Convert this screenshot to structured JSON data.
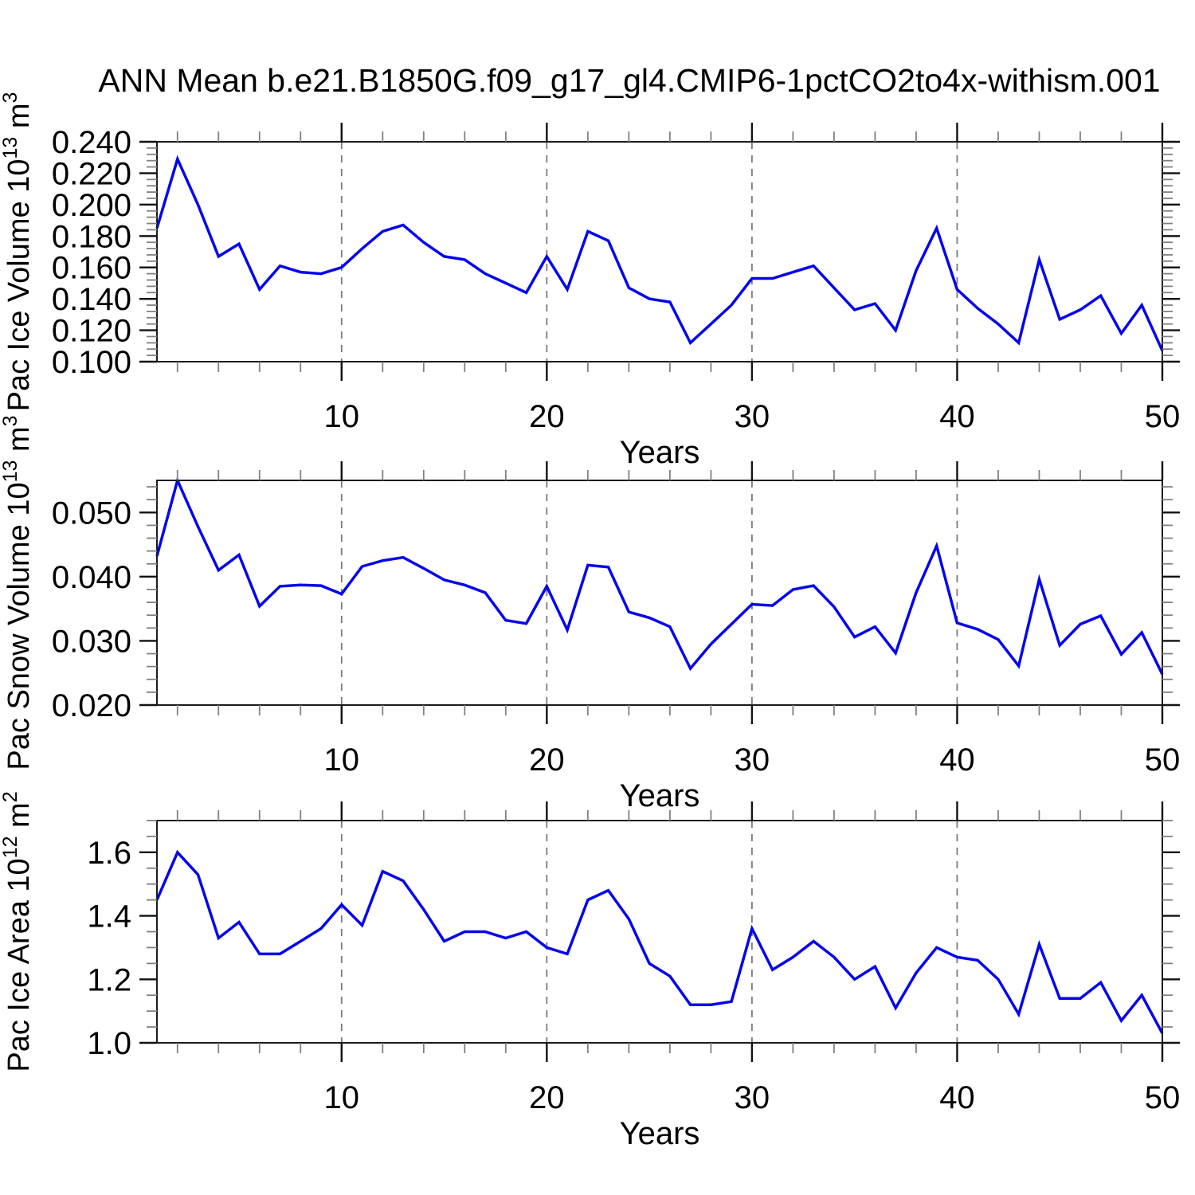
{
  "title": "ANN Mean b.e21.B1850G.f09_g17_gl4.CMIP6-1pctCO2to4x-withism.001",
  "colors": {
    "line": "#0505ee",
    "grid": "#7a7a7a",
    "axis": "#1c1c1c",
    "major_tick": "#111111",
    "minor_tick": "#808080",
    "text": "#000000",
    "background": "#ffffff"
  },
  "x_axis": {
    "label": "Years",
    "range": [
      1,
      50
    ],
    "major_ticks": [
      10,
      20,
      30,
      40,
      50
    ],
    "major_tick_labels": [
      "10",
      "20",
      "30",
      "40",
      "50"
    ],
    "minor_step": 2,
    "gridlines_at": [
      10,
      20,
      30,
      40
    ],
    "grid_style": "dashed"
  },
  "chart_data": [
    {
      "id": "pac-ice-volume",
      "type": "line",
      "ylabel_plain": "Pac Ice Volume 10^13 m^3",
      "ylabel_parts": [
        {
          "t": "Pac Ice Volume 10",
          "sup": false
        },
        {
          "t": "13",
          "sup": true
        },
        {
          "t": " m",
          "sup": false
        },
        {
          "t": "3",
          "sup": true
        }
      ],
      "ylim": [
        0.1,
        0.24
      ],
      "yticks": [
        0.1,
        0.12,
        0.14,
        0.16,
        0.18,
        0.2,
        0.22,
        0.24
      ],
      "ytick_labels": [
        "0.100",
        "0.120",
        "0.140",
        "0.160",
        "0.180",
        "0.200",
        "0.220",
        "0.240"
      ],
      "y_minor_step": 0.004,
      "x_start": 1,
      "values": [
        0.185,
        0.229,
        0.2,
        0.167,
        0.175,
        0.146,
        0.161,
        0.157,
        0.156,
        0.16,
        0.172,
        0.183,
        0.187,
        0.176,
        0.167,
        0.165,
        0.156,
        0.15,
        0.144,
        0.167,
        0.146,
        0.183,
        0.177,
        0.147,
        0.14,
        0.138,
        0.112,
        0.124,
        0.136,
        0.153,
        0.153,
        0.157,
        0.161,
        0.147,
        0.133,
        0.137,
        0.12,
        0.158,
        0.185,
        0.146,
        0.134,
        0.124,
        0.112,
        0.165,
        0.127,
        0.133,
        0.142,
        0.118,
        0.136,
        0.107
      ]
    },
    {
      "id": "pac-snow-volume",
      "type": "line",
      "ylabel_plain": "Pac Snow Volume 10^13 m^3",
      "ylabel_parts": [
        {
          "t": "Pac Snow Volume 10",
          "sup": false
        },
        {
          "t": "13",
          "sup": true
        },
        {
          "t": " m",
          "sup": false
        },
        {
          "t": "3",
          "sup": true
        }
      ],
      "ylim": [
        0.02,
        0.055
      ],
      "yticks": [
        0.02,
        0.03,
        0.04,
        0.05
      ],
      "ytick_labels": [
        "0.020",
        "0.030",
        "0.040",
        "0.050"
      ],
      "y_minor_step": 0.002,
      "x_start": 1,
      "values": [
        0.0432,
        0.055,
        0.0478,
        0.041,
        0.0434,
        0.0354,
        0.0385,
        0.0387,
        0.0386,
        0.0373,
        0.0416,
        0.0425,
        0.043,
        0.0413,
        0.0395,
        0.0387,
        0.0375,
        0.0332,
        0.0327,
        0.0385,
        0.0317,
        0.0418,
        0.0415,
        0.0345,
        0.0336,
        0.0322,
        0.0257,
        0.0295,
        0.0326,
        0.0357,
        0.0355,
        0.038,
        0.0386,
        0.0353,
        0.0306,
        0.0322,
        0.0281,
        0.0375,
        0.0448,
        0.0328,
        0.0318,
        0.0302,
        0.0261,
        0.0396,
        0.0293,
        0.0326,
        0.0339,
        0.0279,
        0.0313,
        0.0248
      ]
    },
    {
      "id": "pac-ice-area",
      "type": "line",
      "ylabel_plain": "Pac Ice Area 10^12 m^2",
      "ylabel_parts": [
        {
          "t": "Pac Ice Area 10",
          "sup": false
        },
        {
          "t": "12",
          "sup": true
        },
        {
          "t": " m",
          "sup": false
        },
        {
          "t": "2",
          "sup": true
        }
      ],
      "ylim": [
        1.0,
        1.7
      ],
      "yticks": [
        1.0,
        1.2,
        1.4,
        1.6
      ],
      "ytick_labels": [
        "1.0",
        "1.2",
        "1.4",
        "1.6"
      ],
      "y_minor_step": 0.05,
      "x_start": 1,
      "values": [
        1.45,
        1.6,
        1.53,
        1.33,
        1.38,
        1.28,
        1.28,
        1.32,
        1.36,
        1.435,
        1.37,
        1.54,
        1.51,
        1.42,
        1.32,
        1.35,
        1.35,
        1.33,
        1.35,
        1.3,
        1.28,
        1.45,
        1.48,
        1.39,
        1.25,
        1.21,
        1.12,
        1.12,
        1.13,
        1.36,
        1.23,
        1.27,
        1.32,
        1.27,
        1.2,
        1.24,
        1.11,
        1.22,
        1.3,
        1.27,
        1.26,
        1.2,
        1.09,
        1.31,
        1.14,
        1.14,
        1.19,
        1.07,
        1.15,
        1.03
      ]
    }
  ]
}
